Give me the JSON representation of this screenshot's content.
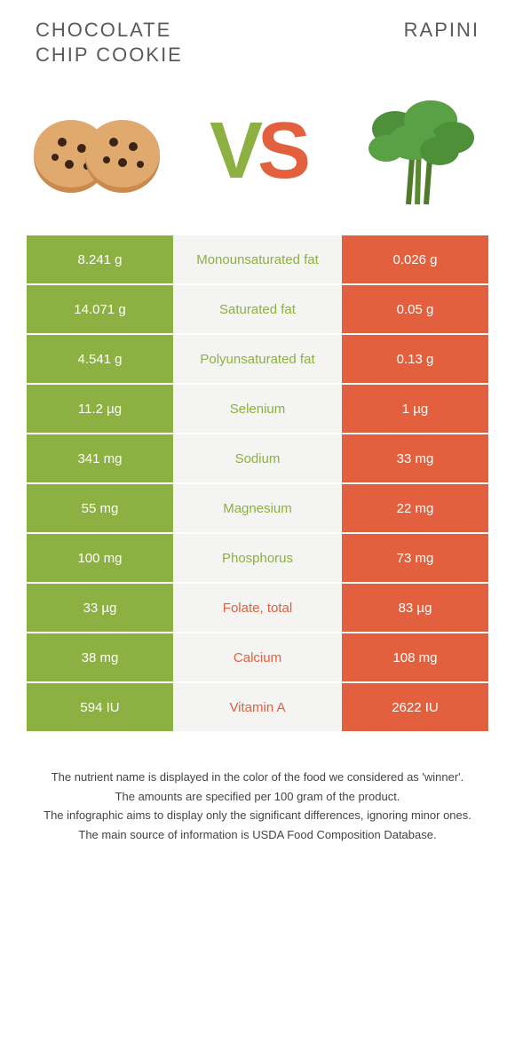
{
  "colors": {
    "left": "#8db042",
    "right": "#e2603e",
    "mid_bg": "#f4f4f2",
    "text": "#333333",
    "title": "#5a5a5a",
    "bg": "#ffffff"
  },
  "header": {
    "left_title": "CHOCOLATE CHIP COOKIE",
    "right_title": "RAPINI",
    "vs_v": "V",
    "vs_s": "S"
  },
  "rows": [
    {
      "left": "8.241 g",
      "label": "Monounsaturated fat",
      "right": "0.026 g",
      "winner": "left"
    },
    {
      "left": "14.071 g",
      "label": "Saturated fat",
      "right": "0.05 g",
      "winner": "left"
    },
    {
      "left": "4.541 g",
      "label": "Polyunsaturated fat",
      "right": "0.13 g",
      "winner": "left"
    },
    {
      "left": "11.2 µg",
      "label": "Selenium",
      "right": "1 µg",
      "winner": "left"
    },
    {
      "left": "341 mg",
      "label": "Sodium",
      "right": "33 mg",
      "winner": "left"
    },
    {
      "left": "55 mg",
      "label": "Magnesium",
      "right": "22 mg",
      "winner": "left"
    },
    {
      "left": "100 mg",
      "label": "Phosphorus",
      "right": "73 mg",
      "winner": "left"
    },
    {
      "left": "33 µg",
      "label": "Folate, total",
      "right": "83 µg",
      "winner": "right"
    },
    {
      "left": "38 mg",
      "label": "Calcium",
      "right": "108 mg",
      "winner": "right"
    },
    {
      "left": "594 IU",
      "label": "Vitamin A",
      "right": "2622 IU",
      "winner": "right"
    }
  ],
  "footnotes": [
    "The nutrient name is displayed in the color of the food we considered as 'winner'.",
    "The amounts are specified per 100 gram of the product.",
    "The infographic aims to display only the significant differences, ignoring minor ones.",
    "The main source of information is USDA Food Composition Database."
  ]
}
